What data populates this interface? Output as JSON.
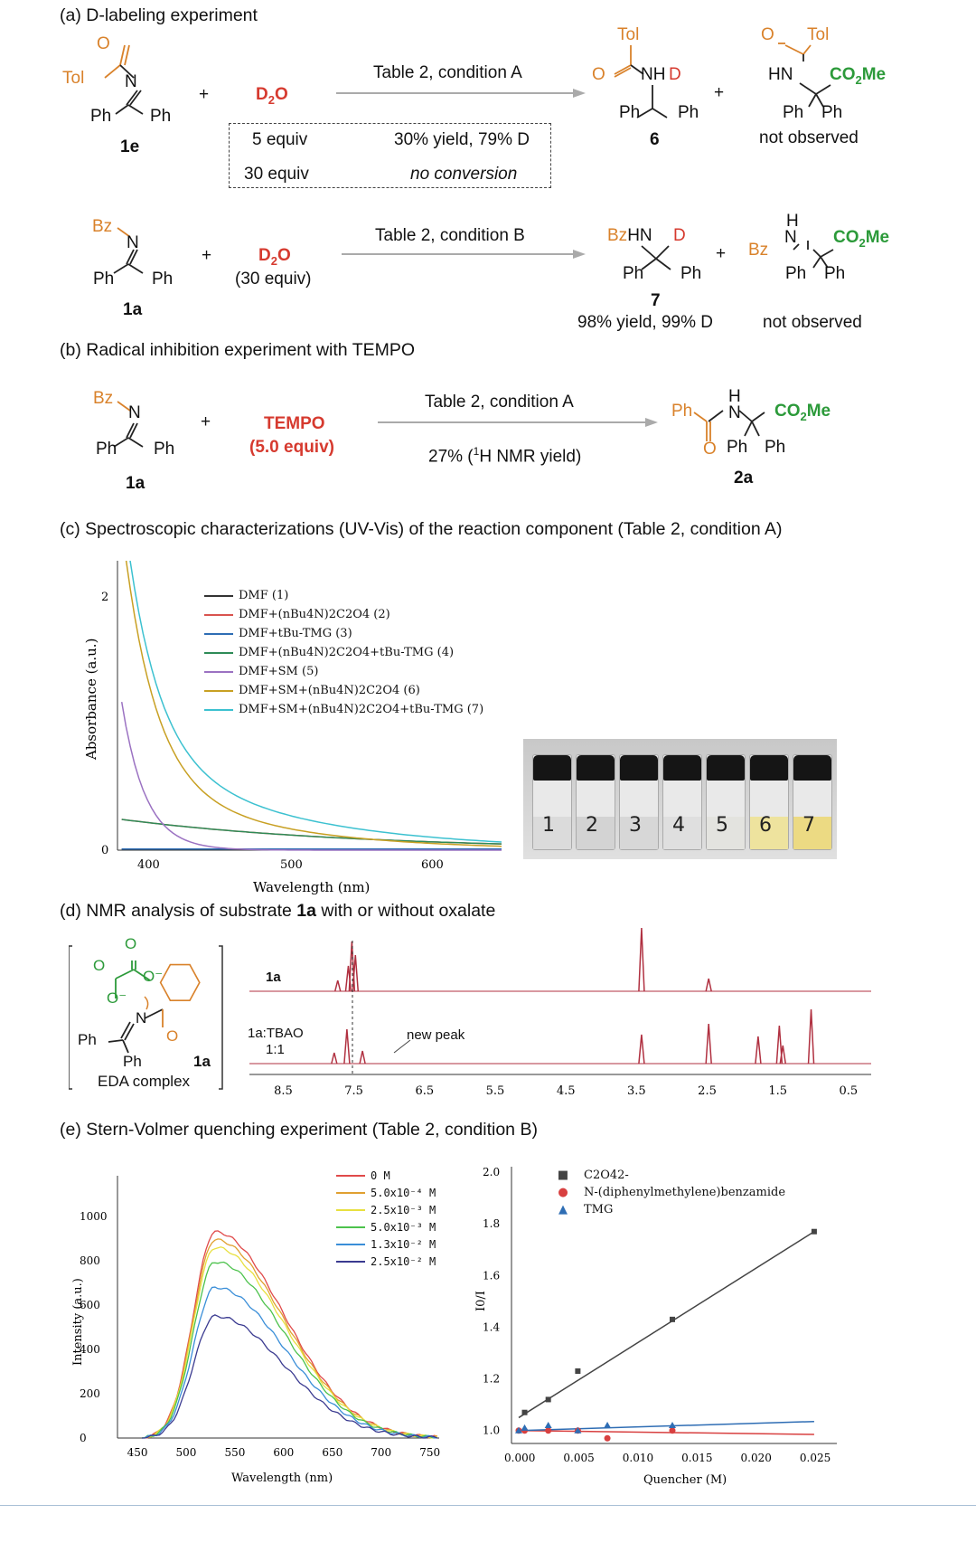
{
  "sections": {
    "a": "(a) D-labeling experiment",
    "b": "(b) Radical inhibition experiment with TEMPO",
    "c": "(c) Spectroscopic characterizations (UV-Vis) of the reaction component (Table 2, condition A)",
    "d_prefix": "(d) NMR analysis of substrate ",
    "d_bold": "1a",
    "d_suffix": " with or without oxalate",
    "e": "(e) Stern-Volmer quenching experiment (Table 2, condition B)"
  },
  "scheme_a": {
    "tol": "Tol",
    "o": "O",
    "n": "N",
    "ph": "Ph",
    "compound_1e": "1e",
    "plus": "+",
    "d2o_main": "D",
    "d2o_sub": "2",
    "d2o_end": "O",
    "condition": "Table 2, condition A",
    "row1_equiv": "5 equiv",
    "row1_result": "30% yield, 79% D",
    "row2_equiv": "30 equiv",
    "row2_result": "no conversion",
    "nh": "NH",
    "d": "D",
    "compound_6": "6",
    "hn": "HN",
    "co2me": "CO",
    "co2me_sub": "2",
    "co2me_end": "Me",
    "not_observed": "not observed"
  },
  "scheme_a2": {
    "bz": "Bz",
    "n": "N",
    "compound_1a": "1a",
    "d2o_equiv": "(30 equiv)",
    "condition": "Table 2, condition B",
    "bzhn": "BzHN",
    "compound_7": "7",
    "result": "98% yield, 99% D",
    "h": "H",
    "not_observed": "not observed"
  },
  "scheme_b": {
    "tempo": "TEMPO",
    "tempo_equiv": "(5.0 equiv)",
    "condition": "Table 2, condition A",
    "result_pre": "27% (",
    "result_sup": "1",
    "result_post": "H NMR yield)",
    "compound_2a": "2a"
  },
  "uvvis": {
    "ylabel": "Absorbance (a.u.)",
    "xlabel": "Wavelength (nm)",
    "yticks": [
      "0",
      "2"
    ],
    "xticks": [
      "400",
      "500",
      "600"
    ],
    "legend": [
      {
        "label": "DMF (1)",
        "color": "#333333"
      },
      {
        "label": "DMF+(nBu4N)2C2O4 (2)",
        "color": "#d9534f"
      },
      {
        "label": "DMF+tBu-TMG (3)",
        "color": "#2e6db4"
      },
      {
        "label": "DMF+(nBu4N)2C2O4+tBu-TMG (4)",
        "color": "#2e8b57"
      },
      {
        "label": "DMF+SM (5)",
        "color": "#9b72c2"
      },
      {
        "label": "DMF+SM+(nBu4N)2C2O4 (6)",
        "color": "#c8a023"
      },
      {
        "label": "DMF+SM+(nBu4N)2C2O4+tBu-TMG (7)",
        "color": "#3cc1d0"
      }
    ],
    "vial_numbers": [
      "1",
      "2",
      "3",
      "4",
      "5",
      "6",
      "7"
    ]
  },
  "nmr": {
    "trace1_label": "1a",
    "trace2_label_a": "1a:TBAO",
    "trace2_label_b": "1:1",
    "new_peak": "new peak",
    "xticks": [
      "8.5",
      "7.5",
      "6.5",
      "5.5",
      "4.5",
      "3.5",
      "2.5",
      "1.5",
      "0.5"
    ],
    "eda_label": "EDA complex",
    "ph": "Ph",
    "n": "N",
    "compound": "1a"
  },
  "fluorescence": {
    "ylabel": "Intensity (a.u.)",
    "xlabel": "Wavelength (nm)",
    "yticks": [
      "0",
      "200",
      "400",
      "600",
      "800",
      "1000"
    ],
    "xticks": [
      "450",
      "500",
      "550",
      "600",
      "650",
      "700",
      "750"
    ],
    "legend": [
      {
        "label": "0 M",
        "color": "#e04a4a"
      },
      {
        "label": "5.0x10⁻⁴ M",
        "color": "#e0a030"
      },
      {
        "label": "2.5x10⁻³ M",
        "color": "#e8e040"
      },
      {
        "label": "5.0x10⁻³ M",
        "color": "#4cc24c"
      },
      {
        "label": "1.3x10⁻² M",
        "color": "#3a8ed8"
      },
      {
        "label": "2.5x10⁻² M",
        "color": "#3a3a90"
      }
    ]
  },
  "chart_data": [
    {
      "type": "line",
      "ylabel": "Intensity (a.u.)",
      "xlabel": "Wavelength (nm)",
      "xlim": [
        430,
        760
      ],
      "ylim": [
        0,
        1000
      ],
      "series": [
        {
          "name": "0 M",
          "peak_x": 530,
          "peak_y": 930
        },
        {
          "name": "5.0x10⁻⁴ M",
          "peak_x": 530,
          "peak_y": 895
        },
        {
          "name": "2.5x10⁻³ M",
          "peak_x": 530,
          "peak_y": 860
        },
        {
          "name": "5.0x10⁻³ M",
          "peak_x": 530,
          "peak_y": 795
        },
        {
          "name": "1.3x10⁻² M",
          "peak_x": 530,
          "peak_y": 680
        },
        {
          "name": "2.5x10⁻² M",
          "peak_x": 530,
          "peak_y": 550
        }
      ]
    },
    {
      "type": "scatter",
      "ylabel": "I0/I",
      "xlabel": "Quencher (M)",
      "xlim": [
        0,
        0.026
      ],
      "ylim": [
        0.97,
        2.0
      ],
      "yticks": [
        "1.0",
        "1.2",
        "1.4",
        "1.6",
        "1.8",
        "2.0"
      ],
      "xticks": [
        "0.000",
        "0.005",
        "0.010",
        "0.015",
        "0.020",
        "0.025"
      ],
      "series": [
        {
          "name": "C2O4 2-",
          "x": [
            0.0005,
            0.0025,
            0.005,
            0.013,
            0.025
          ],
          "y": [
            1.07,
            1.12,
            1.23,
            1.43,
            1.77
          ]
        },
        {
          "name": "N-(diphenylmethylene)benzamide",
          "x": [
            0,
            0.0005,
            0.0025,
            0.005,
            0.0075,
            0.013
          ],
          "y": [
            1.0,
            1.0,
            1.0,
            1.0,
            0.97,
            1.0
          ]
        },
        {
          "name": "TMG",
          "x": [
            0,
            0.0005,
            0.0025,
            0.005,
            0.0075,
            0.013
          ],
          "y": [
            1.0,
            1.01,
            1.02,
            1.0,
            1.02,
            1.02
          ]
        }
      ]
    }
  ],
  "sv_legend": [
    {
      "label": "C2O42-",
      "color": "#444444",
      "shape": "square"
    },
    {
      "label": "N-(diphenylmethylene)benzamide",
      "color": "#d84040",
      "shape": "circle"
    },
    {
      "label": "TMG",
      "color": "#2e6db4",
      "shape": "triangle"
    }
  ]
}
